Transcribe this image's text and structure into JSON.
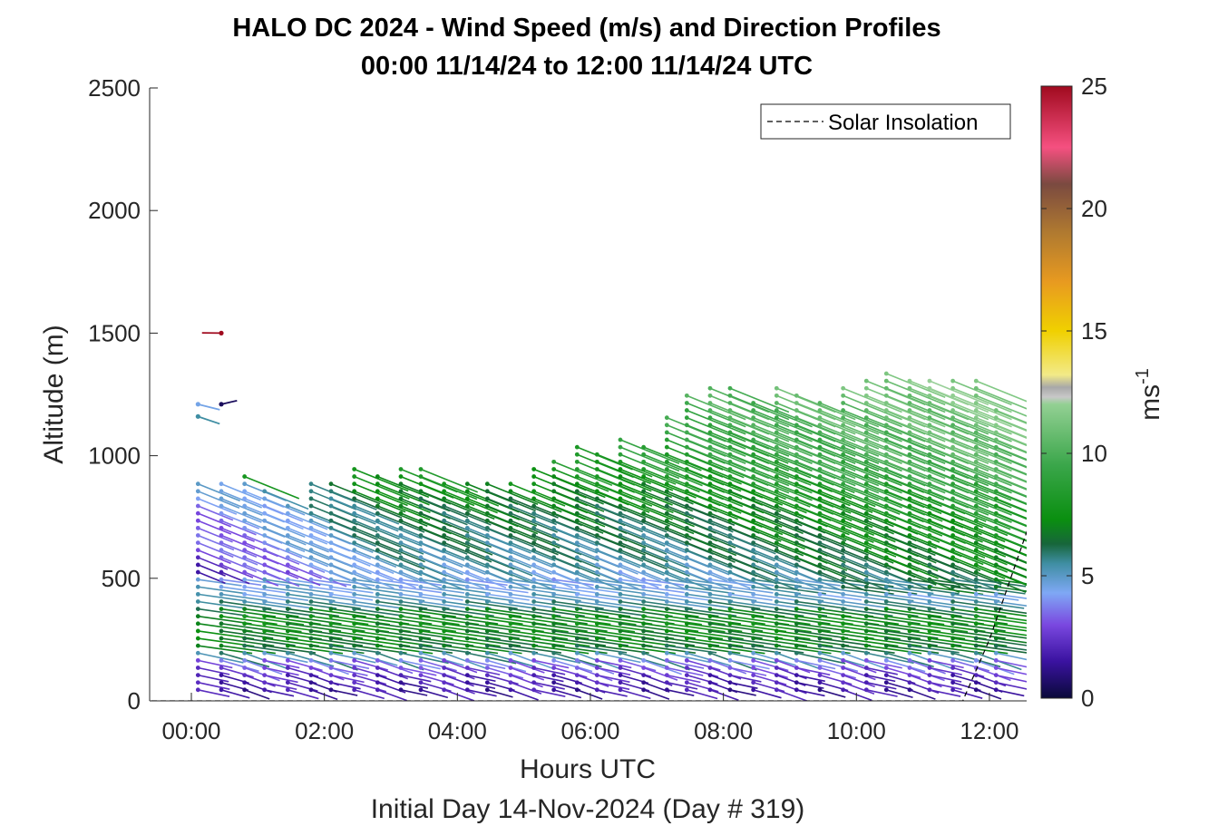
{
  "chart_data": {
    "type": "wind-barb-profile",
    "title": "HALO DC 2024 - Wind Speed (m/s) and Direction Profiles",
    "subtitle": "00:00 11/14/24 to 12:00 11/14/24  UTC",
    "xlabel": "Hours UTC",
    "xlabel2": "Initial Day 14-Nov-2024 (Day # 319)",
    "ylabel": "Altitude (m)",
    "xlim_hours": [
      -0.6,
      12.6
    ],
    "ylim": [
      0,
      2500
    ],
    "xticks": [
      0,
      2,
      4,
      6,
      8,
      10,
      12
    ],
    "xtick_labels": [
      "00:00",
      "02:00",
      "04:00",
      "06:00",
      "08:00",
      "10:00",
      "12:00"
    ],
    "yticks": [
      0,
      500,
      1000,
      1500,
      2000,
      2500
    ],
    "ytick_labels": [
      "0",
      "500",
      "1000",
      "1500",
      "2000",
      "2500"
    ],
    "colorbar": {
      "label": "ms",
      "label_superscript": "-1",
      "range": [
        0,
        25
      ],
      "ticks": [
        0,
        5,
        10,
        15,
        20,
        25
      ],
      "tick_labels": [
        "0",
        "5",
        "10",
        "15",
        "20",
        "25"
      ],
      "stops": [
        {
          "v": 0,
          "c": "#0a0a3a"
        },
        {
          "v": 1.5,
          "c": "#3a12a0"
        },
        {
          "v": 3,
          "c": "#7a48e0"
        },
        {
          "v": 4.3,
          "c": "#7fa8f5"
        },
        {
          "v": 5.5,
          "c": "#3f8ea3"
        },
        {
          "v": 6.3,
          "c": "#17663a"
        },
        {
          "v": 7.3,
          "c": "#0a8f10"
        },
        {
          "v": 9.5,
          "c": "#3aa64a"
        },
        {
          "v": 12,
          "c": "#93d093"
        },
        {
          "v": 12.3,
          "c": "#c8c8c8"
        },
        {
          "v": 12.7,
          "c": "#a8a8a8"
        },
        {
          "v": 13.2,
          "c": "#f2ea88"
        },
        {
          "v": 15,
          "c": "#f0d000"
        },
        {
          "v": 17,
          "c": "#e89a20"
        },
        {
          "v": 19,
          "c": "#b07a30"
        },
        {
          "v": 21,
          "c": "#7a4a40"
        },
        {
          "v": 22.5,
          "c": "#f55080"
        },
        {
          "v": 25,
          "c": "#a00a1e"
        }
      ]
    },
    "legend": {
      "entries": [
        "Solar Insolation"
      ],
      "placement": "top-right"
    },
    "solar_insolation": {
      "x": [
        -0.6,
        11.6,
        12.0,
        12.6
      ],
      "y": [
        0,
        0,
        250,
        720
      ]
    },
    "profile_times_hours": [
      0.1,
      0.45,
      0.8,
      1.1,
      1.45,
      1.8,
      2.1,
      2.45,
      2.8,
      3.15,
      3.45,
      3.8,
      4.15,
      4.45,
      4.8,
      5.15,
      5.45,
      5.8,
      6.1,
      6.45,
      6.8,
      7.15,
      7.45,
      7.8,
      8.1,
      8.45,
      8.8,
      9.1,
      9.45,
      9.8,
      10.15,
      10.45,
      10.8,
      11.1,
      11.45,
      11.8,
      12.1
    ],
    "profile_tops_m": [
      900,
      905,
      915,
      860,
      820,
      900,
      900,
      950,
      930,
      950,
      950,
      900,
      900,
      900,
      900,
      950,
      980,
      1050,
      1030,
      1090,
      1060,
      1160,
      1250,
      1290,
      1290,
      1220,
      1290,
      1260,
      1220,
      1300,
      1330,
      1360,
      1330,
      1320,
      1330,
      1330,
      1200
    ],
    "barb_spacing_m": 30,
    "speed_profile_points_m_ms": [
      [
        0,
        1.3
      ],
      [
        100,
        2.0
      ],
      [
        170,
        3.5
      ],
      [
        210,
        6.5
      ],
      [
        350,
        7.5
      ],
      [
        420,
        5.0
      ],
      [
        500,
        4.5
      ],
      [
        600,
        5.5
      ],
      [
        800,
        6.5
      ],
      [
        1000,
        8.5
      ],
      [
        1400,
        10.5
      ]
    ],
    "isolated_barbs": [
      {
        "time_h": 0.45,
        "alt_m": 1500,
        "speed_ms": 25,
        "dir_deg": 285
      },
      {
        "time_h": 0.45,
        "alt_m": 1210,
        "speed_ms": 0.5,
        "dir_deg": 300
      },
      {
        "time_h": 0.1,
        "alt_m": 1210,
        "speed_ms": 4.5,
        "dir_deg": 270
      },
      {
        "time_h": 0.1,
        "alt_m": 1160,
        "speed_ms": 5.5,
        "dir_deg": 265
      }
    ]
  }
}
